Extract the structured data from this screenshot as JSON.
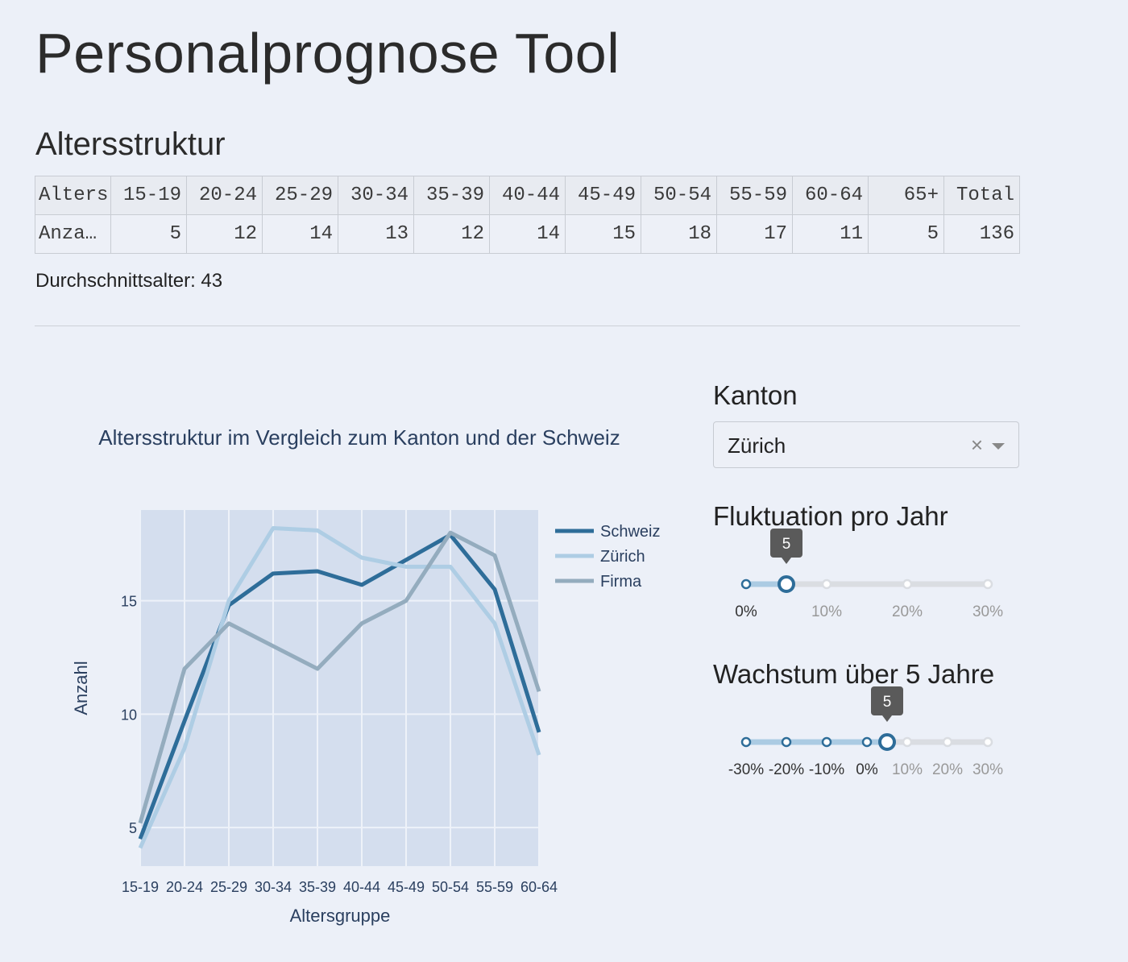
{
  "page": {
    "title": "Personalprognose Tool",
    "section_title": "Altersstruktur",
    "average_age": "Durchschnittsalter: 43"
  },
  "age_table": {
    "header": [
      "Alters",
      "15-19",
      "20-24",
      "25-29",
      "30-34",
      "35-39",
      "40-44",
      "45-49",
      "50-54",
      "55-59",
      "60-64",
      "65+",
      "Total"
    ],
    "row": [
      "Anza…",
      "5",
      "12",
      "14",
      "13",
      "12",
      "14",
      "15",
      "18",
      "17",
      "11",
      "5",
      "136"
    ]
  },
  "controls": {
    "kanton_label": "Kanton",
    "kanton_value": "Zürich",
    "clear_symbol": "×",
    "fluktuation_label": "Fluktuation pro Jahr",
    "fluktuation_value": 5,
    "fluktuation_value_text": "5",
    "fluktuation_marks": [
      "0%",
      "10%",
      "20%",
      "30%"
    ],
    "fluktuation_range": [
      0,
      30
    ],
    "wachstum_label": "Wachstum über 5 Jahre",
    "wachstum_value": 5,
    "wachstum_value_text": "5",
    "wachstum_marks": [
      "-30%",
      "-20%",
      "-10%",
      "0%",
      "10%",
      "20%",
      "30%"
    ],
    "wachstum_range": [
      -30,
      30
    ]
  },
  "chart_data": {
    "type": "line",
    "title": "Altersstruktur im Vergleich zum Kanton und der Schweiz",
    "xlabel": "Altersgruppe",
    "ylabel": "Anzahl",
    "categories": [
      "15-19",
      "20-24",
      "25-29",
      "30-34",
      "35-39",
      "40-44",
      "45-49",
      "50-54",
      "55-59",
      "60-64"
    ],
    "ylim": [
      3.3,
      19
    ],
    "yticks": [
      5,
      10,
      15
    ],
    "grid": true,
    "legend_position": "top-right",
    "series": [
      {
        "name": "Schweiz",
        "color": "#2e6d99",
        "values": [
          4.5,
          9.7,
          14.8,
          16.2,
          16.3,
          15.7,
          16.8,
          17.9,
          15.5,
          9.2
        ]
      },
      {
        "name": "Zürich",
        "color": "#aecde4",
        "values": [
          4.1,
          8.5,
          15.0,
          18.2,
          18.1,
          16.9,
          16.5,
          16.5,
          14.0,
          8.2
        ]
      },
      {
        "name": "Firma",
        "color": "#94acbe",
        "values": [
          5.2,
          12.0,
          14.0,
          13.0,
          12.0,
          14.0,
          15.0,
          18.0,
          17.0,
          11.0
        ]
      }
    ]
  }
}
